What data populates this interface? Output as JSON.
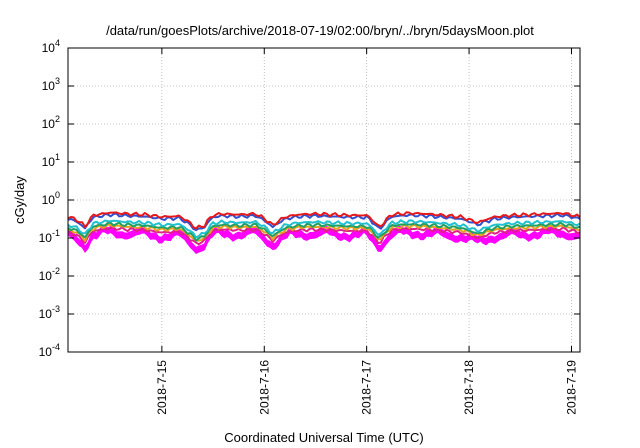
{
  "chart_data": {
    "type": "line",
    "title": "/data/run/goesPlots/archive/2018-07-19/02:00/bryn/../bryn/5daysMoon.plot",
    "xlabel": "Coordinated Universal Time (UTC)",
    "ylabel": "cGy/day",
    "y_scale": "log",
    "ylim": [
      0.0001,
      10000
    ],
    "y_ticks": [
      {
        "base": "10",
        "exp": "-4",
        "value": 0.0001
      },
      {
        "base": "10",
        "exp": "-3",
        "value": 0.001
      },
      {
        "base": "10",
        "exp": "-2",
        "value": 0.01
      },
      {
        "base": "10",
        "exp": "-1",
        "value": 0.1
      },
      {
        "base": "10",
        "exp": "0",
        "value": 1
      },
      {
        "base": "10",
        "exp": "1",
        "value": 10
      },
      {
        "base": "10",
        "exp": "2",
        "value": 100
      },
      {
        "base": "10",
        "exp": "3",
        "value": 1000
      },
      {
        "base": "10",
        "exp": "4",
        "value": 10000
      }
    ],
    "xlim": [
      "2018-07-14 02:00",
      "2018-07-19 02:00"
    ],
    "x_ticks": [
      {
        "label": "2018-7-15",
        "value": "2018-07-15 00:00"
      },
      {
        "label": "2018-7-16",
        "value": "2018-07-16 00:00"
      },
      {
        "label": "2018-7-17",
        "value": "2018-07-17 00:00"
      },
      {
        "label": "2018-7-18",
        "value": "2018-07-18 00:00"
      },
      {
        "label": "2018-7-19",
        "value": "2018-07-19 00:00"
      }
    ],
    "grid": true,
    "series_profile_x": [
      "2018-07-14 02:00",
      "2018-07-14 04:00",
      "2018-07-14 06:00",
      "2018-07-14 08:00",
      "2018-07-14 12:00",
      "2018-07-14 16:00",
      "2018-07-14 20:00",
      "2018-07-15 00:00",
      "2018-07-15 04:00",
      "2018-07-15 08:00",
      "2018-07-15 10:00",
      "2018-07-15 12:00",
      "2018-07-15 14:00",
      "2018-07-15 18:00",
      "2018-07-15 22:00",
      "2018-07-16 02:00",
      "2018-07-16 05:00",
      "2018-07-16 08:00",
      "2018-07-16 12:00",
      "2018-07-16 16:00",
      "2018-07-16 20:00",
      "2018-07-17 00:00",
      "2018-07-17 03:00",
      "2018-07-17 06:00",
      "2018-07-17 10:00",
      "2018-07-17 14:00",
      "2018-07-17 18:00",
      "2018-07-17 22:00",
      "2018-07-18 02:00",
      "2018-07-18 06:00",
      "2018-07-18 10:00",
      "2018-07-18 14:00",
      "2018-07-18 18:00",
      "2018-07-18 22:00",
      "2018-07-19 02:00"
    ],
    "series_profile_factor": [
      1.0,
      0.85,
      0.55,
      1.1,
      1.3,
      1.2,
      1.15,
      1.0,
      1.05,
      0.5,
      0.6,
      1.1,
      1.2,
      1.15,
      1.2,
      0.6,
      1.0,
      1.15,
      1.2,
      1.15,
      1.1,
      1.1,
      0.5,
      1.15,
      1.25,
      1.2,
      1.1,
      1.0,
      0.7,
      1.0,
      1.1,
      1.15,
      1.2,
      1.25,
      1.0
    ],
    "series": [
      {
        "color": "#e41a1c",
        "base": 0.36
      },
      {
        "color": "#3050d0",
        "base": 0.32
      },
      {
        "color": "#20c0d0",
        "base": 0.22
      },
      {
        "color": "#20a060",
        "base": 0.185
      },
      {
        "color": "#e6a020",
        "base": 0.165
      },
      {
        "color": "#e0208a",
        "base": 0.14
      },
      {
        "color": "#ff00ff",
        "base": 0.12,
        "fill": true
      }
    ]
  }
}
